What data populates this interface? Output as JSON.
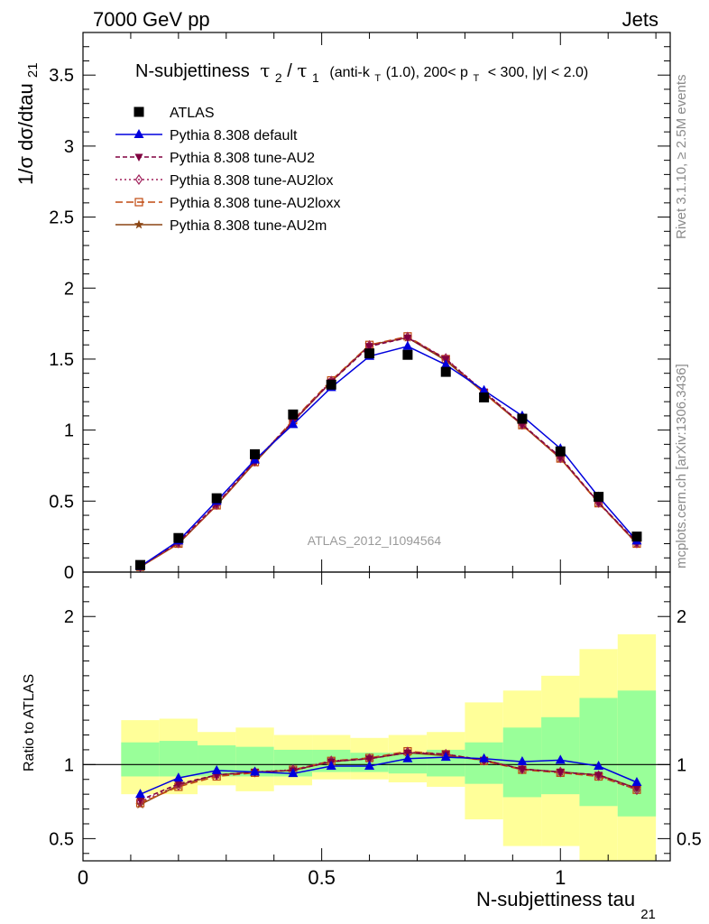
{
  "header": {
    "left": "7000 GeV pp",
    "right": "Jets"
  },
  "title": {
    "main": "N-subjettiness",
    "tau": "τ",
    "sub2": "2",
    "slash": "/",
    "sub1": "1",
    "cuts_a": "(anti-k",
    "cuts_T": "T",
    "cuts_b": "(1.0), 200< p",
    "cuts_c": "< 300, |y| < 2.0)"
  },
  "side": {
    "rivet": "Rivet 3.1.10, ≥ 2.5M events",
    "mcplots": "mcplots.cern.ch [arXiv:1306.3436]"
  },
  "watermark": "ATLAS_2012_I1094564",
  "labels": {
    "ylabel_main": "1/σ dσ/dtau",
    "ylabel_main_sub": "21",
    "ylabel_ratio": "Ratio to ATLAS",
    "xlabel": "N-subjettiness tau",
    "xlabel_sub": "21"
  },
  "colors": {
    "data": "#000000",
    "default": "#0000dd",
    "au2": "#800040",
    "au2lox": "#a0205a",
    "au2loxx": "#c04a10",
    "au2m": "#8b4513",
    "band_inner": "#99ff99",
    "band_outer": "#ffff99"
  },
  "chart_data": {
    "type": "line",
    "x": [
      0.12,
      0.2,
      0.28,
      0.36,
      0.44,
      0.52,
      0.6,
      0.68,
      0.76,
      0.84,
      0.92,
      1.0,
      1.08,
      1.16
    ],
    "bin_edges": [
      0.08,
      0.16,
      0.24,
      0.32,
      0.4,
      0.48,
      0.56,
      0.64,
      0.72,
      0.8,
      0.88,
      0.96,
      1.04,
      1.12,
      1.2
    ],
    "xlim": [
      0,
      1.23
    ],
    "main": {
      "ylim": [
        0,
        3.8
      ],
      "yticks": [
        0,
        0.5,
        1,
        1.5,
        2,
        2.5,
        3,
        3.5
      ],
      "ytick_labels": [
        "0",
        "0.5",
        "1",
        "1.5",
        "2",
        "2.5",
        "3",
        "3.5"
      ],
      "data": {
        "name": "ATLAS",
        "values": [
          0.05,
          0.24,
          0.52,
          0.83,
          1.11,
          1.32,
          1.54,
          1.53,
          1.41,
          1.23,
          1.08,
          0.85,
          0.53,
          0.25
        ]
      },
      "series": [
        {
          "name": "Pythia 8.308 default",
          "key": "default",
          "marker": "triangle-up",
          "dash": "",
          "values": [
            0.04,
            0.22,
            0.5,
            0.79,
            1.04,
            1.3,
            1.52,
            1.59,
            1.46,
            1.28,
            1.1,
            0.87,
            0.53,
            0.22
          ]
        },
        {
          "name": "Pythia 8.308 tune-AU2",
          "key": "au2",
          "marker": "triangle-down",
          "dash": "5,3",
          "values": [
            0.04,
            0.21,
            0.48,
            0.78,
            1.06,
            1.34,
            1.59,
            1.65,
            1.5,
            1.27,
            1.04,
            0.81,
            0.49,
            0.21
          ]
        },
        {
          "name": "Pythia 8.308 tune-AU2lox",
          "key": "au2lox",
          "marker": "diamond-open",
          "dash": "2,3",
          "values": [
            0.038,
            0.205,
            0.475,
            0.78,
            1.065,
            1.345,
            1.595,
            1.655,
            1.505,
            1.27,
            1.04,
            0.805,
            0.49,
            0.205
          ]
        },
        {
          "name": "Pythia 8.308 tune-AU2loxx",
          "key": "au2loxx",
          "marker": "square-open",
          "dash": "8,4",
          "values": [
            0.037,
            0.2,
            0.47,
            0.775,
            1.07,
            1.35,
            1.6,
            1.66,
            1.5,
            1.26,
            1.035,
            0.8,
            0.485,
            0.2
          ]
        },
        {
          "name": "Pythia 8.308 tune-AU2m",
          "key": "au2m",
          "marker": "star",
          "dash": "",
          "values": [
            0.036,
            0.2,
            0.47,
            0.77,
            1.06,
            1.34,
            1.6,
            1.65,
            1.49,
            1.26,
            1.035,
            0.8,
            0.49,
            0.2
          ]
        }
      ]
    },
    "ratio": {
      "ylim": [
        0.35,
        2.3
      ],
      "yticks": [
        0.5,
        1,
        2
      ],
      "ytick_labels": [
        "0.5",
        "1",
        "2"
      ],
      "band_inner": [
        [
          0.92,
          1.15
        ],
        [
          0.92,
          1.16
        ],
        [
          0.92,
          1.13
        ],
        [
          0.92,
          1.12
        ],
        [
          0.92,
          1.1
        ],
        [
          0.95,
          1.1
        ],
        [
          0.95,
          1.08
        ],
        [
          0.94,
          1.08
        ],
        [
          0.92,
          1.1
        ],
        [
          0.87,
          1.15
        ],
        [
          0.78,
          1.25
        ],
        [
          0.8,
          1.32
        ],
        [
          0.72,
          1.45
        ],
        [
          0.65,
          1.5
        ]
      ],
      "band_outer": [
        [
          0.8,
          1.3
        ],
        [
          0.8,
          1.31
        ],
        [
          0.86,
          1.22
        ],
        [
          0.82,
          1.25
        ],
        [
          0.86,
          1.2
        ],
        [
          0.9,
          1.2
        ],
        [
          0.9,
          1.18
        ],
        [
          0.88,
          1.2
        ],
        [
          0.85,
          1.22
        ],
        [
          0.63,
          1.42
        ],
        [
          0.45,
          1.5
        ],
        [
          0.45,
          1.6
        ],
        [
          0.3,
          1.78
        ],
        [
          0.3,
          1.88
        ]
      ],
      "series": [
        {
          "key": "default",
          "values": [
            0.8,
            0.91,
            0.96,
            0.95,
            0.94,
            0.99,
            0.99,
            1.04,
            1.05,
            1.04,
            1.02,
            1.03,
            0.99,
            0.88
          ]
        },
        {
          "key": "au2",
          "values": [
            0.76,
            0.87,
            0.93,
            0.95,
            0.96,
            1.02,
            1.04,
            1.08,
            1.07,
            1.03,
            0.97,
            0.95,
            0.93,
            0.84
          ]
        },
        {
          "key": "au2lox",
          "values": [
            0.75,
            0.86,
            0.93,
            0.95,
            0.965,
            1.025,
            1.04,
            1.085,
            1.07,
            1.03,
            0.97,
            0.95,
            0.925,
            0.83
          ]
        },
        {
          "key": "au2loxx",
          "values": [
            0.74,
            0.85,
            0.92,
            0.945,
            0.965,
            1.025,
            1.045,
            1.09,
            1.07,
            1.025,
            0.965,
            0.945,
            0.92,
            0.83
          ]
        },
        {
          "key": "au2m",
          "values": [
            0.73,
            0.86,
            0.93,
            0.95,
            0.96,
            1.02,
            1.04,
            1.08,
            1.06,
            1.03,
            0.97,
            0.95,
            0.93,
            0.84
          ]
        }
      ]
    },
    "xticks": [
      0,
      0.5,
      1
    ],
    "xtick_labels": [
      "0",
      "0.5",
      "1"
    ]
  }
}
